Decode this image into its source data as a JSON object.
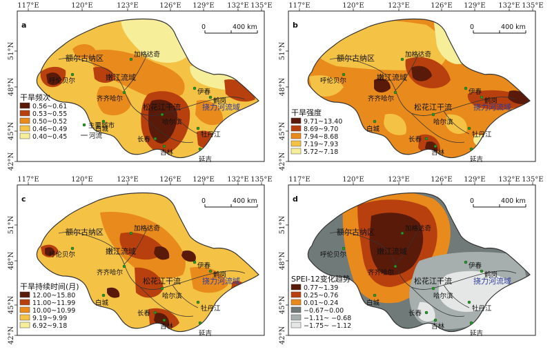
{
  "lon_ticks": [
    "117°E",
    "120°E",
    "123°E",
    "126°E",
    "129°E",
    "132°E",
    "135°E"
  ],
  "lat_ticks": [
    "51°N",
    "48°N",
    "45°N",
    "42°N"
  ],
  "scale_label": "400 km",
  "scale_zero": "0",
  "colors": {
    "c1": "#5a1a0a",
    "c2": "#b8400f",
    "c3": "#e98a1c",
    "c4": "#f4c245",
    "c5": "#f7ee9a",
    "g1": "#707a79",
    "g2": "#a6aeae",
    "g3": "#e4e7e6",
    "ocean": "#ffffff",
    "border": "#333333",
    "river": "#333333"
  },
  "cities": {
    "jiagedaqi": "加格达奇",
    "hulunbuir": "呼伦贝尔",
    "qiqihar": "齐齐哈尔",
    "yichun": "伊春",
    "hegang": "鹤岗",
    "baicheng": "白城",
    "harbin": "哈尔滨",
    "changchun": "长春",
    "mudanjiang": "牡丹江",
    "jilin": "吉林",
    "yanji": "延吉"
  },
  "regions": {
    "ergun": "额尔古纳区",
    "nenjiang": "嫩江流域",
    "songhua": "松花江干流",
    "wusuli": "挠力河流域"
  },
  "panels": [
    {
      "label": "a",
      "legend_title": "干旱频次",
      "legend": [
        "0.56~0.61",
        "0.53~0.55",
        "0.50~0.52",
        "0.46~0.49",
        "0.40~0.45"
      ],
      "extra_legend": {
        "city": "主要城市",
        "river": "河流"
      }
    },
    {
      "label": "b",
      "legend_title": "干旱强度",
      "legend": [
        "9.71~13.40",
        "8.69~9.70",
        "7.94~8.68",
        "7.19~7.93",
        "5.72~7.18"
      ]
    },
    {
      "label": "c",
      "legend_title": "干旱持续时间(月)",
      "legend": [
        "12.00~15.80",
        "11.00~11.99",
        "10.00~10.99",
        "9.19~9.99",
        "6.92~9.18"
      ]
    },
    {
      "label": "d",
      "legend_title": "SPEI-12变化趋势",
      "legend": [
        "0.77~1.39",
        "0.25~0.76",
        "0.01~0.24",
        "−0.67~0.00",
        "−1.11~ −0.68",
        "−1.75~ −1.12"
      ]
    }
  ]
}
